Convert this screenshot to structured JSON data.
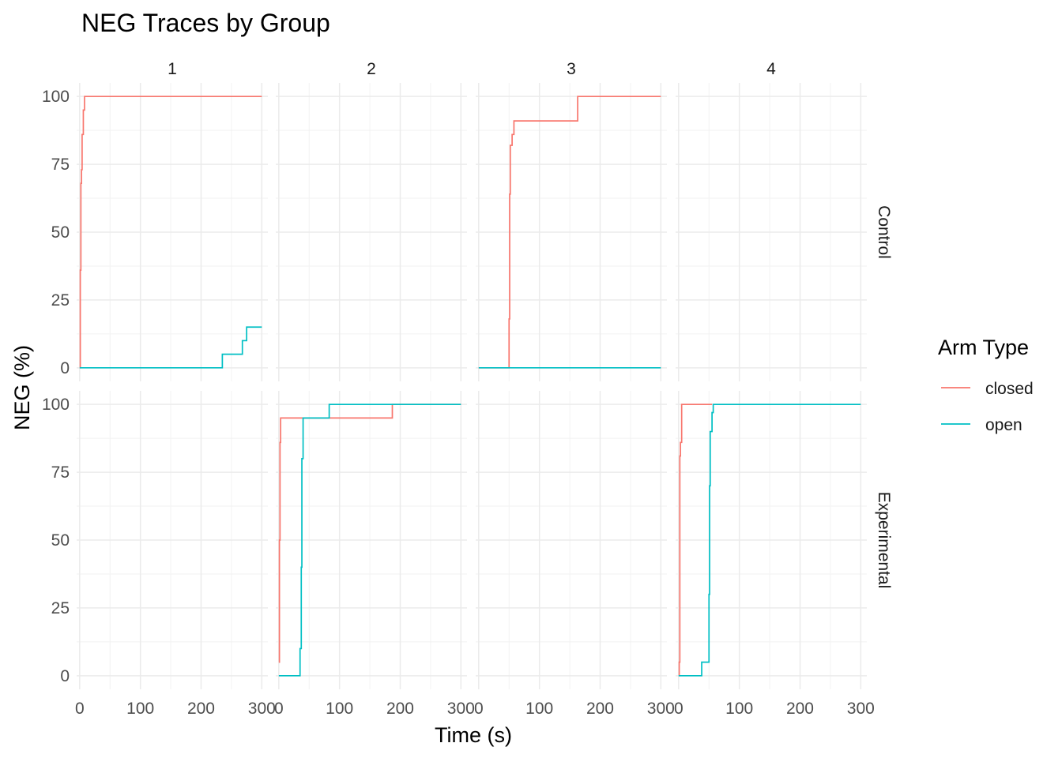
{
  "chart_data": {
    "type": "line",
    "title": "NEG Traces by Group",
    "xlabel": "Time (s)",
    "ylabel": "NEG (%)",
    "xlim": [
      -5,
      310
    ],
    "ylim": [
      -5,
      105
    ],
    "x_ticks": [
      0,
      100,
      200,
      300
    ],
    "y_ticks": [
      0,
      25,
      50,
      75,
      100
    ],
    "grid": true,
    "legend": {
      "title": "Arm Type",
      "position": "right",
      "entries": [
        {
          "label": "closed",
          "color": "#F8766D"
        },
        {
          "label": "open",
          "color": "#00BFC4"
        }
      ]
    },
    "facet_cols": [
      "1",
      "2",
      "3",
      "4"
    ],
    "facet_rows": [
      "Control",
      "Experimental"
    ],
    "panels": [
      {
        "row": "Control",
        "col": "1",
        "series": [
          {
            "name": "closed",
            "x": [
              0,
              1,
              1,
              2,
              2,
              3,
              3,
              4,
              4,
              6,
              6,
              8,
              8,
              300
            ],
            "y": [
              0,
              0,
              36,
              36,
              68,
              68,
              73,
              73,
              86,
              86,
              95,
              95,
              100,
              100
            ]
          },
          {
            "name": "open",
            "x": [
              0,
              235,
              235,
              260,
              260,
              268,
              268,
              275,
              275,
              300
            ],
            "y": [
              0,
              0,
              5,
              5,
              5,
              5,
              10,
              10,
              15,
              15
            ]
          }
        ]
      },
      {
        "row": "Control",
        "col": "2",
        "series": []
      },
      {
        "row": "Control",
        "col": "3",
        "series": [
          {
            "name": "closed",
            "x": [
              0,
              50,
              50,
              51,
              51,
              52,
              52,
              55,
              55,
              58,
              58,
              163,
              163,
              300
            ],
            "y": [
              0,
              0,
              18,
              18,
              64,
              64,
              82,
              82,
              86,
              86,
              91,
              91,
              100,
              100
            ]
          },
          {
            "name": "open",
            "x": [
              0,
              300
            ],
            "y": [
              0,
              0
            ]
          }
        ]
      },
      {
        "row": "Control",
        "col": "4",
        "series": []
      },
      {
        "row": "Experimental",
        "col": "1",
        "series": []
      },
      {
        "row": "Experimental",
        "col": "2",
        "series": [
          {
            "name": "closed",
            "x": [
              0,
              1,
              1,
              2,
              2,
              3,
              3,
              187,
              187,
              300
            ],
            "y": [
              5,
              5,
              50,
              50,
              86,
              86,
              95,
              95,
              100,
              100
            ]
          },
          {
            "name": "open",
            "x": [
              0,
              35,
              35,
              37,
              37,
              38,
              38,
              40,
              40,
              83,
              83,
              300
            ],
            "y": [
              0,
              0,
              10,
              10,
              40,
              40,
              80,
              80,
              95,
              95,
              100,
              100
            ]
          }
        ]
      },
      {
        "row": "Experimental",
        "col": "3",
        "series": []
      },
      {
        "row": "Experimental",
        "col": "4",
        "series": [
          {
            "name": "closed",
            "x": [
              0,
              1,
              1,
              2,
              2,
              3,
              3,
              5,
              5,
              55
            ],
            "y": [
              0,
              0,
              5,
              5,
              81,
              81,
              86,
              86,
              100,
              100
            ]
          },
          {
            "name": "open",
            "x": [
              0,
              38,
              38,
              50,
              50,
              51,
              51,
              52,
              52,
              55,
              55,
              57,
              57,
              300
            ],
            "y": [
              0,
              0,
              5,
              5,
              30,
              30,
              70,
              70,
              90,
              90,
              97,
              97,
              100,
              100
            ]
          }
        ]
      }
    ]
  }
}
